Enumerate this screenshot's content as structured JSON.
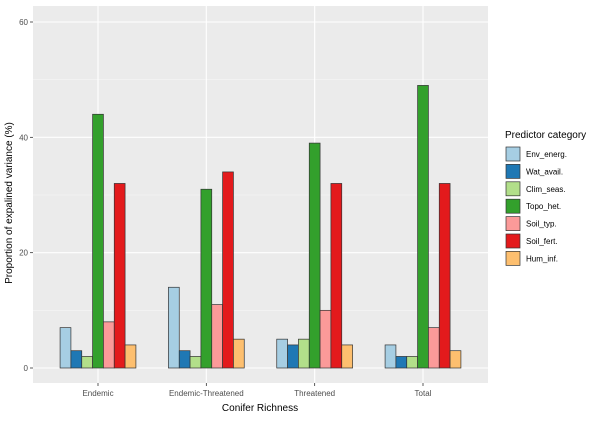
{
  "chart_data": {
    "type": "bar",
    "xlabel": "Conifer Richness",
    "ylabel": "Proportion of expalined variance (%)",
    "ylim": [
      0,
      62
    ],
    "yticks": [
      0,
      20,
      40,
      60
    ],
    "grid": true,
    "legend_title": "Predictor category",
    "legend_position": "right",
    "categories": [
      "Endemic",
      "Endemic-Threatened",
      "Threatened",
      "Total"
    ],
    "series": [
      {
        "name": "Env_energ.",
        "color": "#a6cee3",
        "values": [
          7,
          14,
          5,
          4
        ]
      },
      {
        "name": "Wat_avail.",
        "color": "#1f78b4",
        "values": [
          3,
          3,
          4,
          2
        ]
      },
      {
        "name": "Clim_seas.",
        "color": "#b2df8a",
        "values": [
          2,
          2,
          5,
          2
        ]
      },
      {
        "name": "Topo_het.",
        "color": "#33a02c",
        "values": [
          44,
          31,
          39,
          49
        ]
      },
      {
        "name": "Soil_typ.",
        "color": "#fb9a99",
        "values": [
          8,
          11,
          10,
          7
        ]
      },
      {
        "name": "Soil_fert.",
        "color": "#e31a1c",
        "values": [
          32,
          34,
          32,
          32
        ]
      },
      {
        "name": "Hum_inf.",
        "color": "#fdbf6f",
        "values": [
          4,
          5,
          4,
          3
        ]
      }
    ]
  }
}
